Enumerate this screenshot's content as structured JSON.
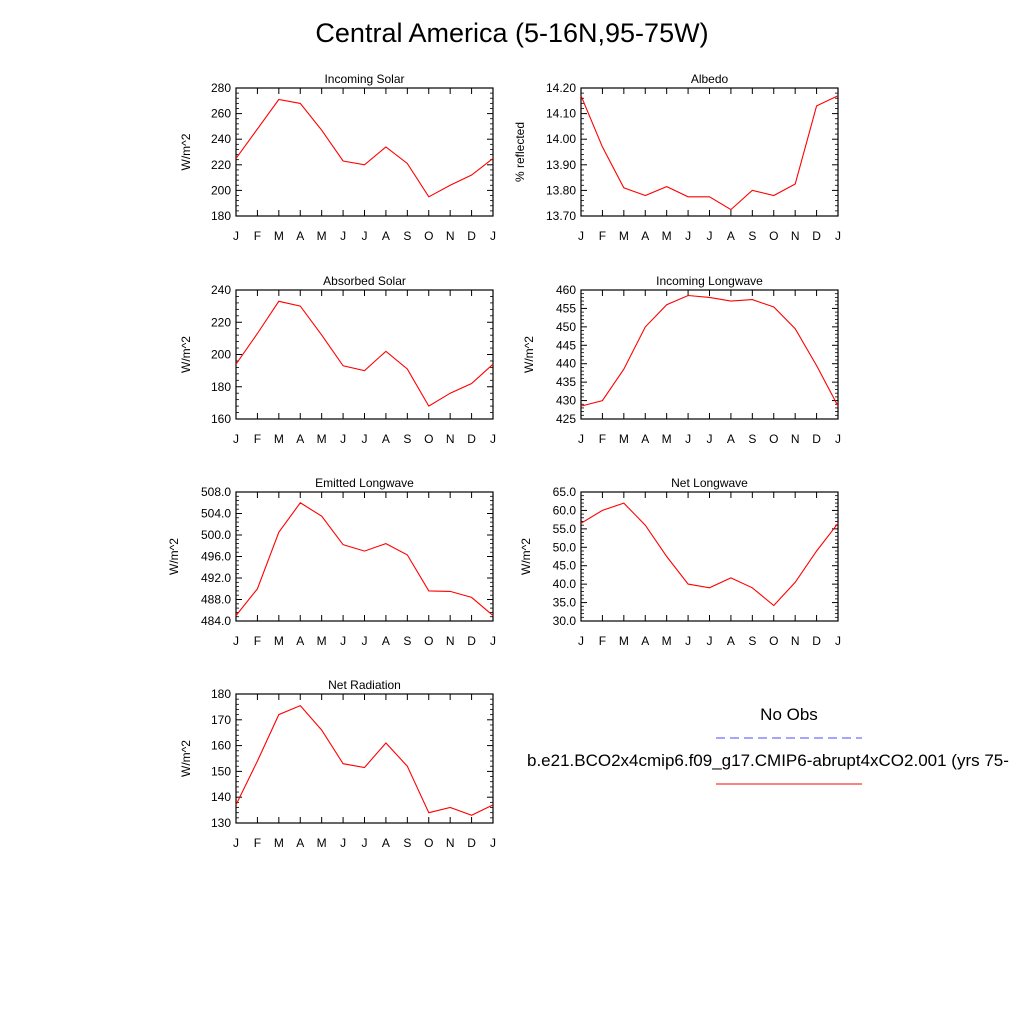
{
  "title": "Central America (5-16N,95-75W)",
  "legend": {
    "obs_label": "No Obs",
    "model_label": "b.e21.BCO2x4cmip6.f09_g17.CMIP6-abrupt4xCO2.001 (yrs 75-",
    "obs_color": "#4b4bff",
    "model_color": "#ff0000"
  },
  "chart_data": [
    {
      "type": "line",
      "title": "Incoming Solar",
      "ylabel": "W/m^2",
      "xlabel": "",
      "categories": [
        "J",
        "F",
        "M",
        "A",
        "M",
        "J",
        "J",
        "A",
        "S",
        "O",
        "N",
        "D",
        "J"
      ],
      "ylim": [
        180,
        280
      ],
      "yticks": [
        "180",
        "200",
        "220",
        "240",
        "260",
        "280"
      ],
      "series": [
        {
          "name": "model",
          "color": "#ff0000",
          "values": [
            225,
            248,
            271,
            268,
            247,
            223,
            220,
            234,
            221,
            195,
            204,
            212,
            225
          ]
        }
      ]
    },
    {
      "type": "line",
      "title": "Albedo",
      "ylabel": "% reflected",
      "xlabel": "",
      "categories": [
        "J",
        "F",
        "M",
        "A",
        "M",
        "J",
        "J",
        "A",
        "S",
        "O",
        "N",
        "D",
        "J"
      ],
      "ylim": [
        13.7,
        14.2
      ],
      "yticks": [
        "13.70",
        "13.80",
        "13.90",
        "14.00",
        "14.10",
        "14.20"
      ],
      "series": [
        {
          "name": "model",
          "color": "#ff0000",
          "values": [
            14.17,
            13.97,
            13.81,
            13.78,
            13.815,
            13.775,
            13.775,
            13.725,
            13.8,
            13.78,
            13.825,
            14.13,
            14.17
          ]
        }
      ]
    },
    {
      "type": "line",
      "title": "Absorbed Solar",
      "ylabel": "W/m^2",
      "xlabel": "",
      "categories": [
        "J",
        "F",
        "M",
        "A",
        "M",
        "J",
        "J",
        "A",
        "S",
        "O",
        "N",
        "D",
        "J"
      ],
      "ylim": [
        160,
        240
      ],
      "yticks": [
        "160",
        "180",
        "200",
        "220",
        "240"
      ],
      "series": [
        {
          "name": "model",
          "color": "#ff0000",
          "values": [
            194,
            213,
            233,
            230,
            212,
            193,
            190,
            202,
            191,
            168,
            176,
            182,
            194
          ]
        }
      ]
    },
    {
      "type": "line",
      "title": "Incoming Longwave",
      "ylabel": "W/m^2",
      "xlabel": "",
      "categories": [
        "J",
        "F",
        "M",
        "A",
        "M",
        "J",
        "J",
        "A",
        "S",
        "O",
        "N",
        "D",
        "J"
      ],
      "ylim": [
        425,
        460
      ],
      "yticks": [
        "425",
        "430",
        "435",
        "440",
        "445",
        "450",
        "455",
        "460"
      ],
      "series": [
        {
          "name": "model",
          "color": "#ff0000",
          "values": [
            428.5,
            430,
            438.5,
            450,
            456,
            458.5,
            458,
            457,
            457.4,
            455.4,
            449.5,
            439.5,
            428.5
          ]
        }
      ]
    },
    {
      "type": "line",
      "title": "Emitted Longwave",
      "ylabel": "W/m^2",
      "xlabel": "",
      "categories": [
        "J",
        "F",
        "M",
        "A",
        "M",
        "J",
        "J",
        "A",
        "S",
        "O",
        "N",
        "D",
        "J"
      ],
      "ylim": [
        484,
        508
      ],
      "yticks": [
        "484.0",
        "488.0",
        "492.0",
        "496.0",
        "500.0",
        "504.0",
        "508.0"
      ],
      "series": [
        {
          "name": "model",
          "color": "#ff0000",
          "values": [
            485,
            490,
            500.5,
            506,
            503.5,
            498.2,
            497,
            498.4,
            496.3,
            489.6,
            489.5,
            488.4,
            485
          ]
        }
      ]
    },
    {
      "type": "line",
      "title": "Net Longwave",
      "ylabel": "W/m^2",
      "xlabel": "",
      "categories": [
        "J",
        "F",
        "M",
        "A",
        "M",
        "J",
        "J",
        "A",
        "S",
        "O",
        "N",
        "D",
        "J"
      ],
      "ylim": [
        30,
        65
      ],
      "yticks": [
        "30.0",
        "35.0",
        "40.0",
        "45.0",
        "50.0",
        "55.0",
        "60.0",
        "65.0"
      ],
      "series": [
        {
          "name": "model",
          "color": "#ff0000",
          "values": [
            56.5,
            60,
            62,
            56,
            47.5,
            40,
            39,
            41.7,
            39,
            34.2,
            40.5,
            49,
            56.5
          ]
        }
      ]
    },
    {
      "type": "line",
      "title": "Net Radiation",
      "ylabel": "W/m^2",
      "xlabel": "",
      "categories": [
        "J",
        "F",
        "M",
        "A",
        "M",
        "J",
        "J",
        "A",
        "S",
        "O",
        "N",
        "D",
        "J"
      ],
      "ylim": [
        130,
        180
      ],
      "yticks": [
        "130",
        "140",
        "150",
        "160",
        "170",
        "180"
      ],
      "series": [
        {
          "name": "model",
          "color": "#ff0000",
          "values": [
            137,
            154,
            172,
            175.5,
            166,
            153,
            151.5,
            161,
            152,
            134,
            136,
            133,
            137
          ]
        }
      ]
    }
  ]
}
